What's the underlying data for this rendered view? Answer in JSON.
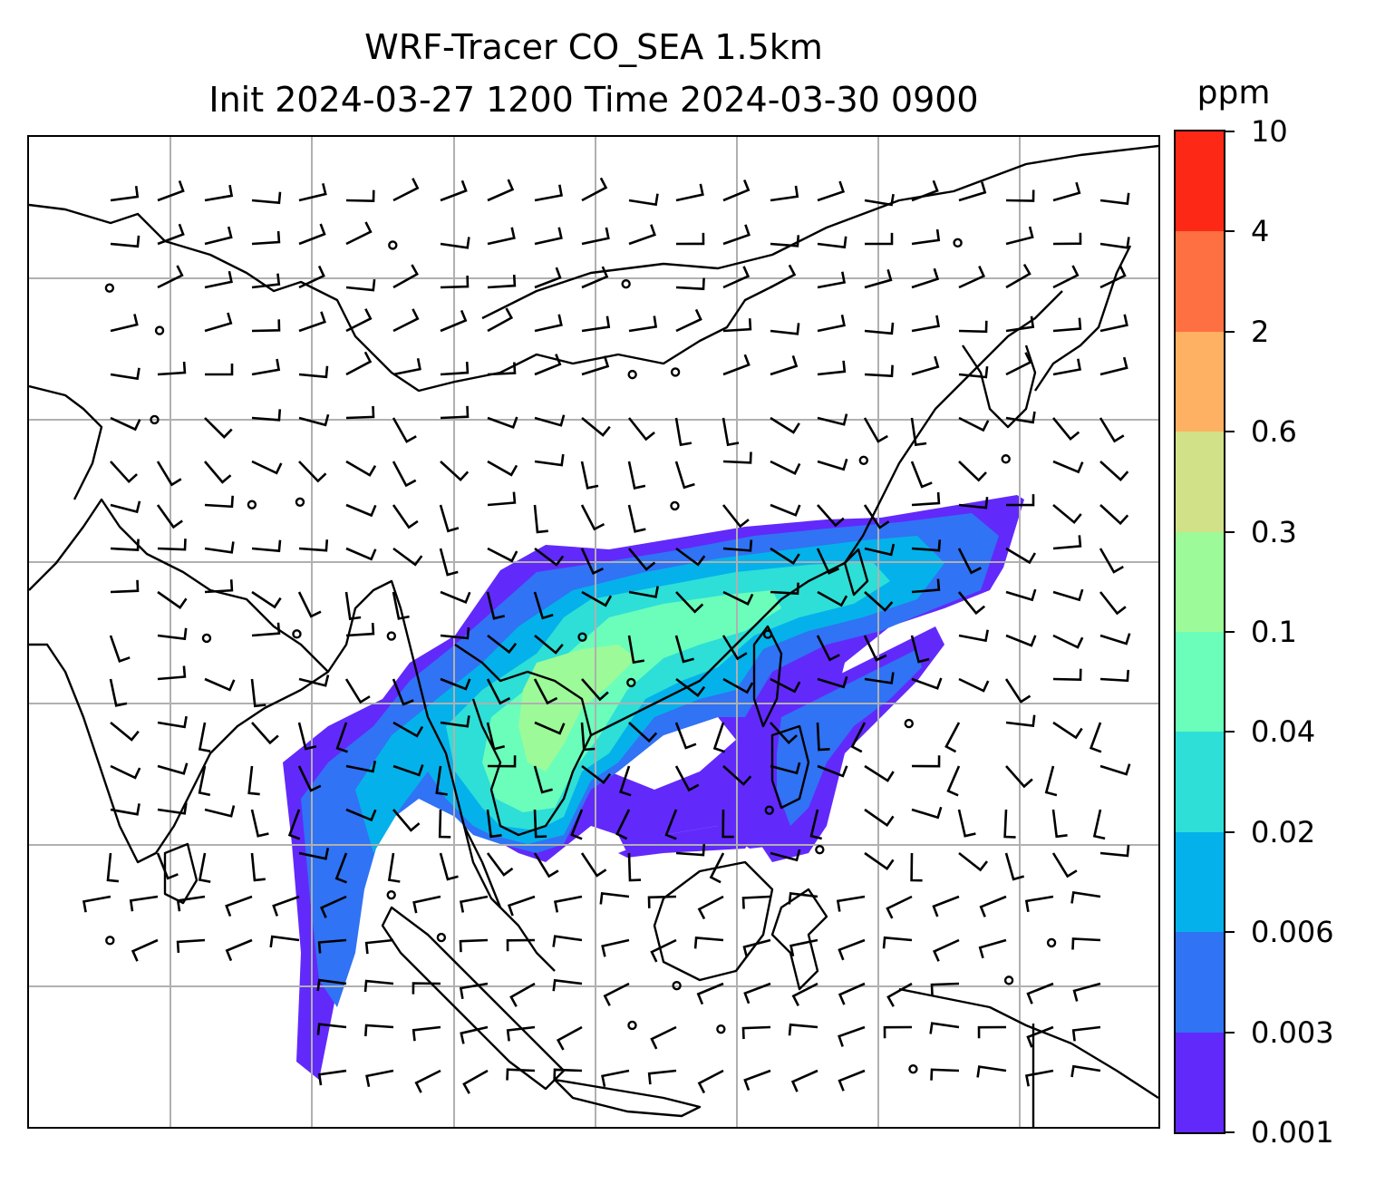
{
  "title": {
    "line1": "WRF-Tracer CO_SEA 1.5km",
    "line2": "Init 2024-03-27 1200 Time 2024-03-30 0900"
  },
  "colorbar": {
    "unit": "ppm",
    "levels": [
      "0.001",
      "0.003",
      "0.006",
      "0.02",
      "0.04",
      "0.1",
      "0.3",
      "0.6",
      "2",
      "4",
      "10"
    ],
    "colors": [
      "#6229fb",
      "#3073f4",
      "#05b1ea",
      "#2ddfd7",
      "#6bfebb",
      "#9cfa98",
      "#d0e187",
      "#feb162",
      "#fe7041",
      "#fe2816"
    ]
  },
  "map": {
    "region": "Southeast and East Asia",
    "gridlines": true,
    "coastline_color": "#000000",
    "grid_color": "#b0b0b0",
    "layers": [
      "CO tracer concentration (filled contours)",
      "wind barbs",
      "coastlines"
    ]
  }
}
